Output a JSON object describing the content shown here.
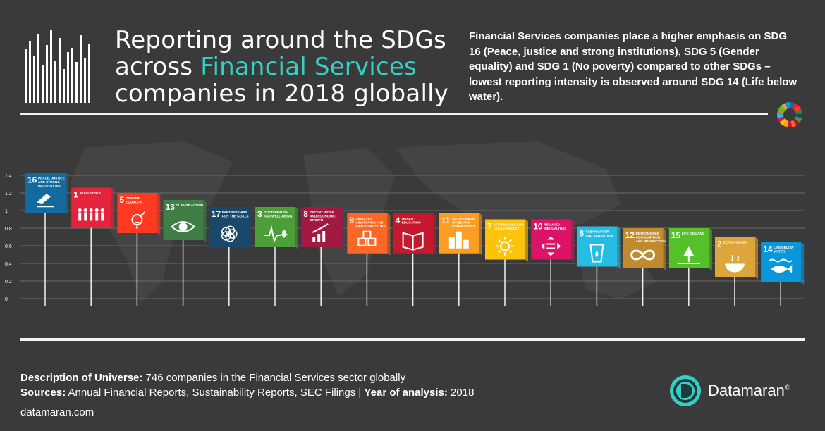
{
  "title": {
    "line1": "Reporting around the SDGs",
    "line2_prefix": "across ",
    "line2_accent": "Financial Services",
    "line3": "companies in 2018 globally"
  },
  "summary": "Financial Services companies place a higher emphasis on SDG 16 (Peace, justice and strong institutions), SDG 5 (Gender equality) and SDG 1 (No poverty) compared to other SDGs – lowest reporting intensity is observed around SDG 14 (Life below water).",
  "footer": {
    "universe_label": "Description of Universe:",
    "universe_value": " 746 companies in the Financial Services sector globally",
    "sources_label": "Sources:",
    "sources_value": "  Annual Financial Reports, Sustainability Reports, SEC Filings | ",
    "year_label": "Year of analysis:",
    "year_value": " 2018",
    "site": "datamaran.com"
  },
  "brand": {
    "name": "Datamaran",
    "mark": "®"
  },
  "colors": {
    "background": "#3a3a3a",
    "accent": "#35d0c5",
    "gridline": "#6a6a6a"
  },
  "chart_data": {
    "type": "bar",
    "ylim": [
      0,
      1.5
    ],
    "yticks": [
      "0",
      "0.2",
      "0.4",
      "0.6",
      "0.8",
      "1",
      "1.2",
      "1.4"
    ],
    "categories": [
      {
        "num": "16",
        "label": "PEACE, JUSTICE AND STRONG INSTITUTIONS",
        "color": "#136a9f",
        "icon": "dove-gavel-icon",
        "value": 1.43
      },
      {
        "num": "1",
        "label": "NO POVERTY",
        "color": "#e5243b",
        "icon": "family-icon",
        "value": 1.26
      },
      {
        "num": "5",
        "label": "GENDER EQUALITY",
        "color": "#ff3a21",
        "icon": "gender-icon",
        "value": 1.2
      },
      {
        "num": "13",
        "label": "CLIMATE ACTION",
        "color": "#3f7e44",
        "icon": "eye-globe-icon",
        "value": 1.12
      },
      {
        "num": "17",
        "label": "PARTNERSHIPS FOR THE GOALS",
        "color": "#19486a",
        "icon": "rings-icon",
        "value": 1.04
      },
      {
        "num": "3",
        "label": "GOOD HEALTH AND WELL-BEING",
        "color": "#4c9f38",
        "icon": "heartbeat-icon",
        "value": 1.04
      },
      {
        "num": "8",
        "label": "DECENT WORK AND ECONOMIC GROWTH",
        "color": "#a21942",
        "icon": "growth-chart-icon",
        "value": 1.04
      },
      {
        "num": "9",
        "label": "INDUSTRY, INNOVATION AND INFRASTRUCTURE",
        "color": "#fd6925",
        "icon": "cubes-icon",
        "value": 0.97
      },
      {
        "num": "4",
        "label": "QUALITY EDUCATION",
        "color": "#c5192d",
        "icon": "book-icon",
        "value": 0.97
      },
      {
        "num": "11",
        "label": "SUSTAINABLE CITIES AND COMMUNITIES",
        "color": "#fd9d24",
        "icon": "city-icon",
        "value": 0.97
      },
      {
        "num": "7",
        "label": "AFFORDABLE AND CLEAN ENERGY",
        "color": "#fcc30b",
        "icon": "sun-power-icon",
        "value": 0.9
      },
      {
        "num": "10",
        "label": "REDUCED INEQUALITIES",
        "color": "#dd1367",
        "icon": "equality-icon",
        "value": 0.9
      },
      {
        "num": "6",
        "label": "CLEAN WATER AND SANITATION",
        "color": "#26bde2",
        "icon": "water-glass-icon",
        "value": 0.82
      },
      {
        "num": "12",
        "label": "RESPONSIBLE CONSUMPTION AND PRODUCTION",
        "color": "#bf8b2e",
        "icon": "infinity-icon",
        "value": 0.8
      },
      {
        "num": "15",
        "label": "LIFE ON LAND",
        "color": "#56c02b",
        "icon": "tree-icon",
        "value": 0.8
      },
      {
        "num": "2",
        "label": "ZERO HUNGER",
        "color": "#dda63a",
        "icon": "bowl-icon",
        "value": 0.7
      },
      {
        "num": "14",
        "label": "LIFE BELOW WATER",
        "color": "#0a97d9",
        "icon": "fish-icon",
        "value": 0.64
      }
    ]
  }
}
